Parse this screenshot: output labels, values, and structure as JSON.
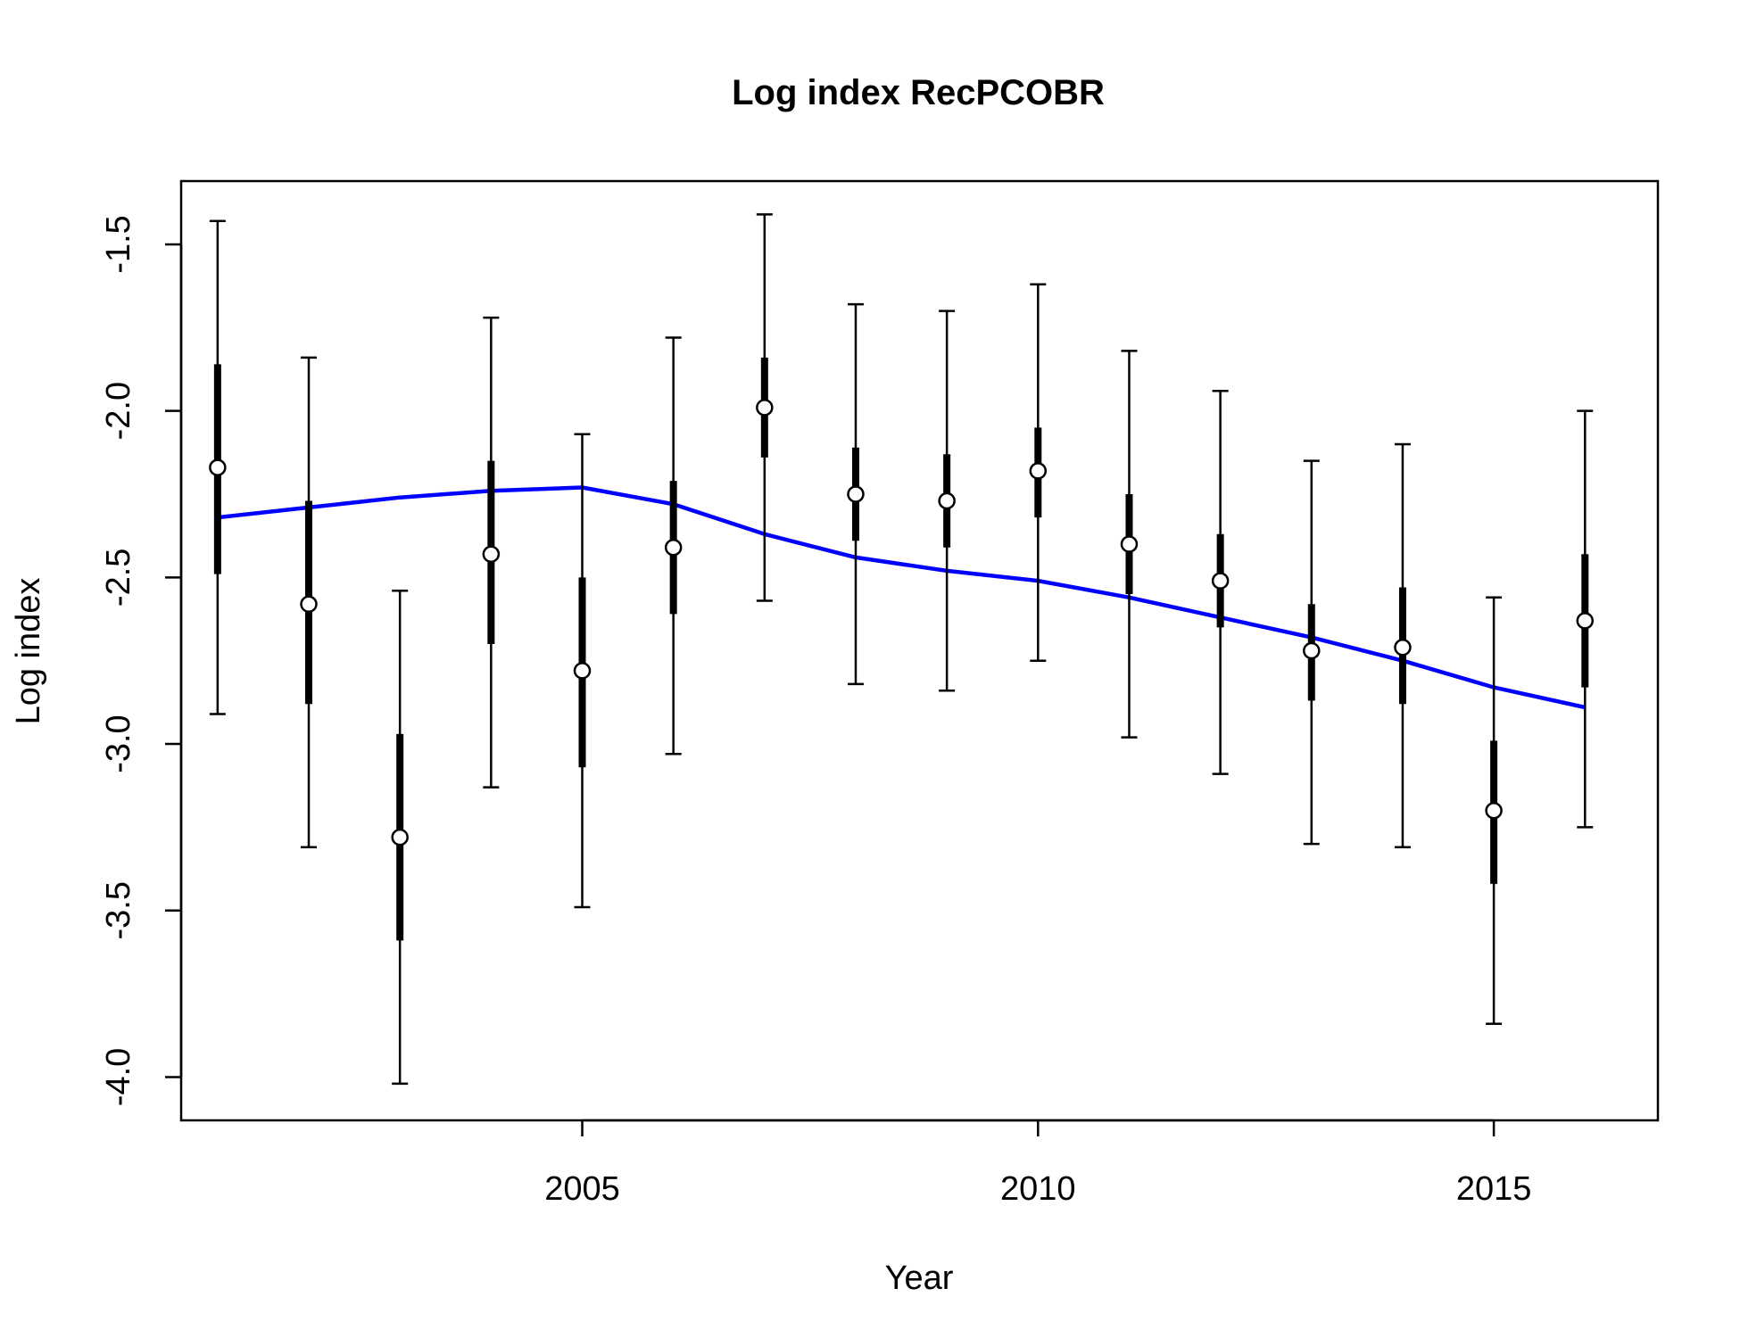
{
  "chart_data": {
    "type": "scatter",
    "title": "Log index RecPCOBR",
    "xlabel": "Year",
    "ylabel": "Log index",
    "xlim": [
      2000.6,
      2016.8
    ],
    "ylim": [
      -4.13,
      -1.31
    ],
    "x_ticks": [
      2005,
      2010,
      2015
    ],
    "x_tick_labels": [
      "2005",
      "2010",
      "2015"
    ],
    "y_ticks": [
      -1.5,
      -2.0,
      -2.5,
      -3.0,
      -3.5,
      -4.0
    ],
    "y_tick_labels": [
      "-1.5",
      "-2.0",
      "-2.5",
      "-3.0",
      "-3.5",
      "-4.0"
    ],
    "grid": false,
    "legend": "none",
    "colors": {
      "observed": "#000000",
      "point_fill": "#ffffff",
      "fit": "#0000ff"
    },
    "series": [
      {
        "kind": "points-with-intervals",
        "x": [
          2001,
          2002,
          2003,
          2004,
          2005,
          2006,
          2007,
          2008,
          2009,
          2010,
          2011,
          2012,
          2013,
          2014,
          2015,
          2016
        ],
        "y": [
          -2.17,
          -2.58,
          -3.28,
          -2.43,
          -2.78,
          -2.41,
          -1.99,
          -2.25,
          -2.27,
          -2.18,
          -2.4,
          -2.51,
          -2.72,
          -2.71,
          -3.2,
          -2.63
        ],
        "inner_lower": [
          -2.49,
          -2.88,
          -3.59,
          -2.7,
          -3.07,
          -2.61,
          -2.14,
          -2.39,
          -2.41,
          -2.32,
          -2.55,
          -2.65,
          -2.87,
          -2.88,
          -3.42,
          -2.83
        ],
        "inner_upper": [
          -1.86,
          -2.27,
          -2.97,
          -2.15,
          -2.5,
          -2.21,
          -1.84,
          -2.11,
          -2.13,
          -2.05,
          -2.25,
          -2.37,
          -2.58,
          -2.53,
          -2.99,
          -2.43
        ],
        "outer_lower": [
          -2.91,
          -3.31,
          -4.02,
          -3.13,
          -3.49,
          -3.03,
          -2.57,
          -2.82,
          -2.84,
          -2.75,
          -2.98,
          -3.09,
          -3.3,
          -3.31,
          -3.84,
          -3.25
        ],
        "outer_upper": [
          -1.43,
          -1.84,
          -2.54,
          -1.72,
          -2.07,
          -1.78,
          -1.41,
          -1.68,
          -1.7,
          -1.62,
          -1.82,
          -1.94,
          -2.15,
          -2.1,
          -2.56,
          -2.0
        ]
      },
      {
        "kind": "line",
        "x": [
          2001,
          2002,
          2003,
          2004,
          2005,
          2006,
          2007,
          2008,
          2009,
          2010,
          2011,
          2012,
          2013,
          2014,
          2015,
          2016
        ],
        "y": [
          -2.32,
          -2.29,
          -2.26,
          -2.24,
          -2.23,
          -2.28,
          -2.37,
          -2.44,
          -2.48,
          -2.51,
          -2.56,
          -2.62,
          -2.68,
          -2.75,
          -2.83,
          -2.89
        ]
      }
    ]
  }
}
